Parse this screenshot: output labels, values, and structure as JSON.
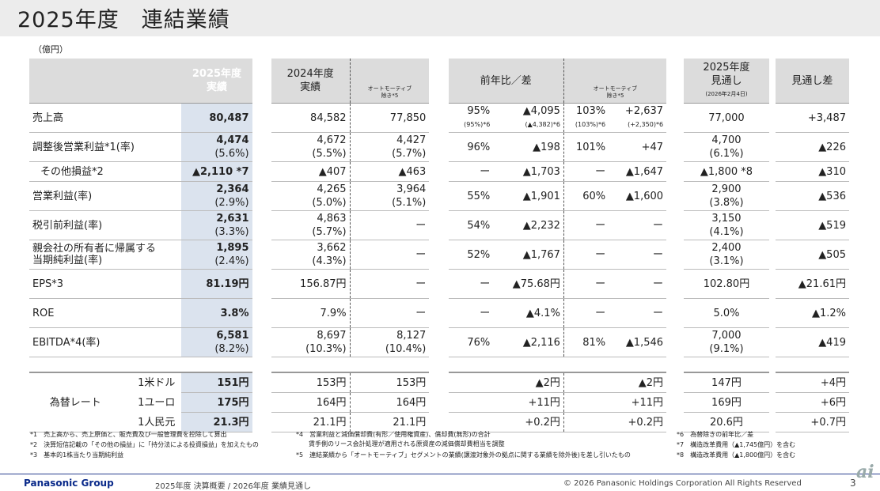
{
  "title": "2025年度　連結業績",
  "unit": "（億円）",
  "headers": {
    "fy2025_actual": "2025年度\n実績",
    "fy2024_actual": "2024年度\n実績",
    "ex_auto": "オートモーティブ\n除き*5",
    "yoy": "前年比／差",
    "yoy_ex_auto": "オートモーティブ\n除き*5",
    "forecast": "2025年度\n見通し",
    "forecast_date": "(2026年2月4日)",
    "forecast_diff": "見通し差"
  },
  "rows": [
    {
      "label": "売上高",
      "a": "80,487",
      "b": "84,582",
      "c": "77,850",
      "d": "95%",
      "d2": "(95%)*6",
      "e": "▲4,095",
      "e2": "(▲4,382)*6",
      "f": "103%",
      "f2": "(103%)*6",
      "g": "+2,637",
      "g2": "(+2,350)*6",
      "h": "77,000",
      "i": "+3,487"
    },
    {
      "label": "調整後営業利益*1(率)",
      "a": "4,474",
      "a2": "(5.6%)",
      "b": "4,672",
      "b2": "(5.5%)",
      "c": "4,427",
      "c2": "(5.7%)",
      "d": "96%",
      "e": "▲198",
      "f": "101%",
      "g": "+47",
      "h": "4,700",
      "h2": "(6.1%)",
      "i": "▲226"
    },
    {
      "label": "その他損益*2",
      "a": "▲2,110 *7",
      "b": "▲407",
      "c": "▲463",
      "d": "ー",
      "e": "▲1,703",
      "f": "ー",
      "g": "▲1,647",
      "h": "▲1,800 *8",
      "i": "▲310"
    },
    {
      "label": "営業利益(率)",
      "a": "2,364",
      "a2": "(2.9%)",
      "b": "4,265",
      "b2": "(5.0%)",
      "c": "3,964",
      "c2": "(5.1%)",
      "d": "55%",
      "e": "▲1,901",
      "f": "60%",
      "g": "▲1,600",
      "h": "2,900",
      "h2": "(3.8%)",
      "i": "▲536"
    },
    {
      "label": "税引前利益(率)",
      "a": "2,631",
      "a2": "(3.3%)",
      "b": "4,863",
      "b2": "(5.7%)",
      "c": "ー",
      "d": "54%",
      "e": "▲2,232",
      "f": "ー",
      "g": "ー",
      "h": "3,150",
      "h2": "(4.1%)",
      "i": "▲519"
    },
    {
      "label": "親会社の所有者に帰属する\n当期純利益(率)",
      "a": "1,895",
      "a2": "(2.4%)",
      "b": "3,662",
      "b2": "(4.3%)",
      "c": "ー",
      "d": "52%",
      "e": "▲1,767",
      "f": "ー",
      "g": "ー",
      "h": "2,400",
      "h2": "(3.1%)",
      "i": "▲505"
    },
    {
      "label": "EPS*3",
      "a": "81.19円",
      "b": "156.87円",
      "c": "ー",
      "d": "ー",
      "e": "▲75.68円",
      "f": "ー",
      "g": "ー",
      "h": "102.80円",
      "i": "▲21.61円"
    },
    {
      "label": "ROE",
      "a": "3.8%",
      "b": "7.9%",
      "c": "ー",
      "d": "ー",
      "e": "▲4.1%",
      "f": "ー",
      "g": "ー",
      "h": "5.0%",
      "i": "▲1.2%"
    },
    {
      "label": "EBITDA*4(率)",
      "a": "6,581",
      "a2": "(8.2%)",
      "b": "8,697",
      "b2": "(10.3%)",
      "c": "8,127",
      "c2": "(10.4%)",
      "d": "76%",
      "e": "▲2,116",
      "f": "81%",
      "g": "▲1,546",
      "h": "7,000",
      "h2": "(9.1%)",
      "i": "▲419"
    }
  ],
  "fx": {
    "label": "為替レート",
    "rows": [
      {
        "cur": "1米ドル",
        "a": "151円",
        "b": "153円",
        "c": "153円",
        "e": "▲2円",
        "g": "▲2円",
        "h": "147円",
        "i": "+4円"
      },
      {
        "cur": "1ユーロ",
        "a": "175円",
        "b": "164円",
        "c": "164円",
        "e": "+11円",
        "g": "+11円",
        "h": "169円",
        "i": "+6円"
      },
      {
        "cur": "1人民元",
        "a": "21.3円",
        "b": "21.1円",
        "c": "21.1円",
        "e": "+0.2円",
        "g": "+0.2円",
        "h": "20.6円",
        "i": "+0.7円"
      }
    ]
  },
  "notes": {
    "n1": "*1　売上高から、売上原価と、販売費及び一般管理費を控除して算出",
    "n2": "*2　決算短信記載の「その他の損益」に「持分法による投資損益」を加えたもの",
    "n3": "*3　基本的1株当たり当期純利益",
    "n4a": "*4　営業利益と減価償却費(有形／使用権資産)、償却費(無形)の合計",
    "n4b": "　　賃手側のリース会計処理が適用される原資産の減価償却費相当を調整",
    "n5": "*5　連結業績から「オートモーティブ」セグメントの業績(譲渡対象外の拠点に関する業績を除外後)を差し引いたもの",
    "n6": "*6　為替除きの前年比／差",
    "n7": "*7　構造改革費用（▲1,745億円）を含む",
    "n8": "*8　構造改革費用（▲1,800億円）を含む"
  },
  "footer": {
    "brand": "Panasonic Group",
    "center": "2025年度 決算概要 / 2026年度 業績見通し",
    "copyright": "© 2026 Panasonic Holdings Corporation  All Rights Reserved",
    "page": "3",
    "logo": "ai"
  }
}
